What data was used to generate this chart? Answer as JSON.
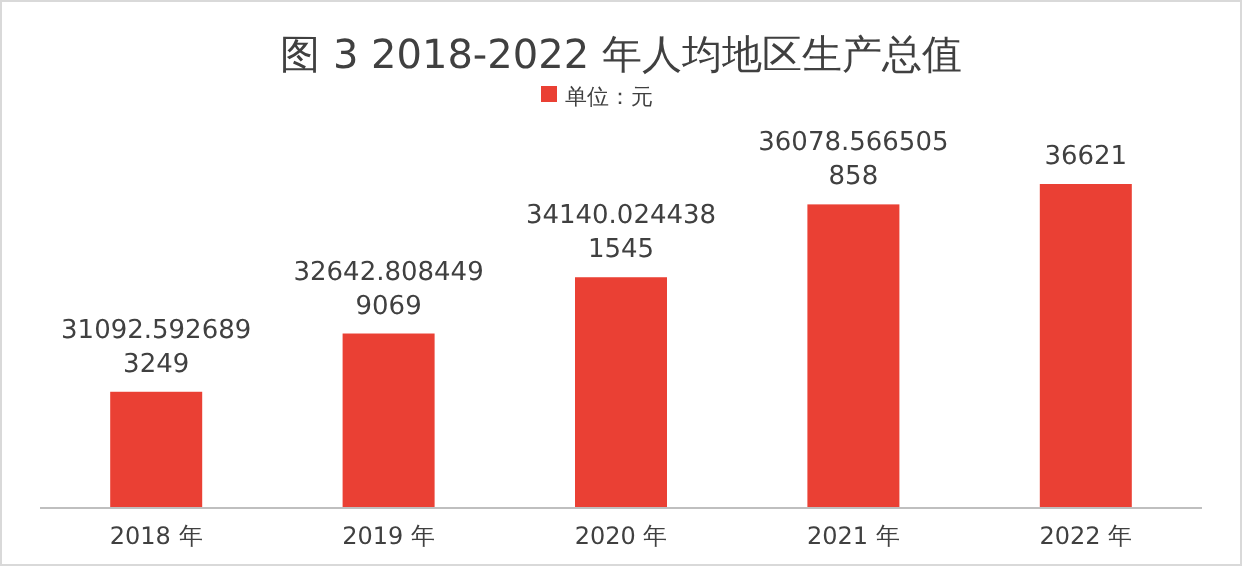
{
  "chart_data": {
    "type": "bar",
    "title": "图 3  2018-2022 年人均地区生产总值",
    "categories": [
      "2018 年",
      "2019 年",
      "2020 年",
      "2021 年",
      "2022 年"
    ],
    "series": [
      {
        "name": "单位：元",
        "color": "#ea4034",
        "values": [
          31092.5926893249,
          32642.8084499069,
          34140.0244381545,
          36078.566505858,
          36621
        ]
      }
    ],
    "ylim": [
      28000,
      36621
    ],
    "data_labels": true,
    "legend": "top"
  }
}
